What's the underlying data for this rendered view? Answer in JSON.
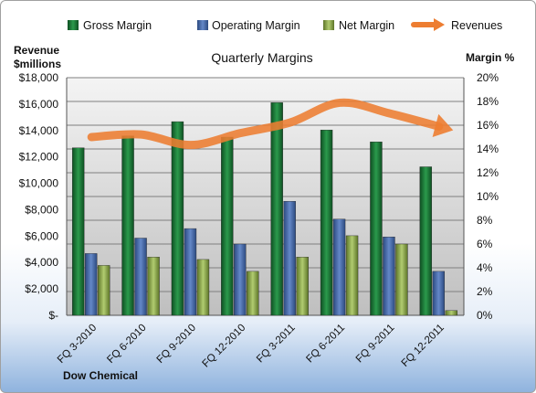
{
  "chart_data": {
    "type": "bar",
    "title": "Quarterly Margins",
    "ylabel_left": [
      "Revenue",
      "$millions"
    ],
    "ylabel_right": "Margin %",
    "footer": "Dow Chemical",
    "categories": [
      "FQ 3-2010",
      "FQ 6-2010",
      "FQ 9-2010",
      "FQ 12-2010",
      "FQ 3-2011",
      "FQ 6-2011",
      "FQ 9-2011",
      "FQ 12-2011"
    ],
    "left_axis": {
      "min": 0,
      "max": 18000,
      "step": 2000,
      "tick_labels": [
        "$-",
        "$2,000",
        "$4,000",
        "$6,000",
        "$8,000",
        "$10,000",
        "$12,000",
        "$14,000",
        "$16,000",
        "$18,000"
      ]
    },
    "right_axis": {
      "min": 0,
      "max": 20,
      "step": 2,
      "tick_labels": [
        "0%",
        "2%",
        "4%",
        "6%",
        "8%",
        "10%",
        "12%",
        "14%",
        "16%",
        "18%",
        "20%"
      ]
    },
    "series": [
      {
        "name": "Gross Margin",
        "kind": "bar",
        "axis": "right",
        "color": "#1e7a3c",
        "values": [
          14.1,
          15.1,
          16.3,
          15.0,
          17.9,
          15.6,
          14.6,
          12.5
        ]
      },
      {
        "name": "Operating Margin",
        "kind": "bar",
        "axis": "right",
        "color": "#4a6fb0",
        "values": [
          5.2,
          6.5,
          7.3,
          6.0,
          9.6,
          8.1,
          6.6,
          3.7
        ]
      },
      {
        "name": "Net Margin",
        "kind": "bar",
        "axis": "right",
        "color": "#8aa848",
        "values": [
          4.2,
          4.9,
          4.7,
          3.7,
          4.9,
          6.7,
          6.0,
          0.4
        ]
      },
      {
        "name": "Revenues",
        "kind": "line",
        "axis": "left",
        "color": "#ed7d31",
        "values": [
          13500,
          13700,
          12900,
          13800,
          14600,
          16100,
          15300,
          14300
        ]
      }
    ],
    "grid": true,
    "legend_position": "top"
  }
}
